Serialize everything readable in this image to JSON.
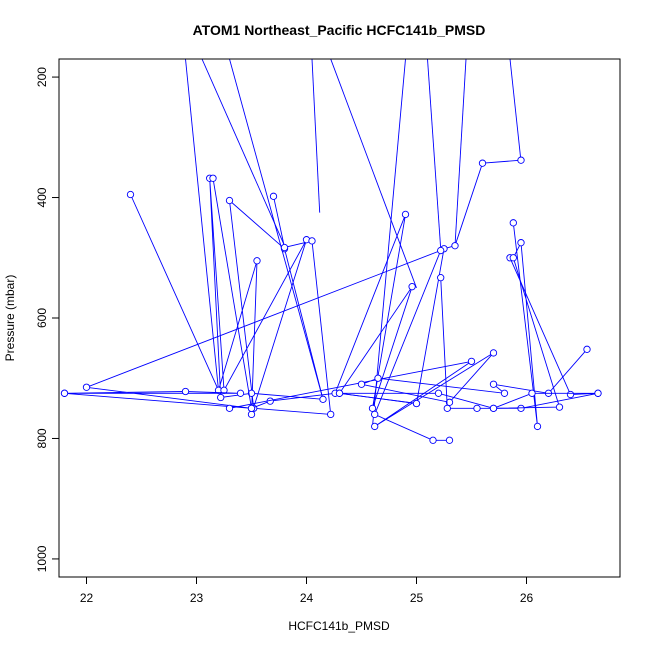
{
  "chart_data": {
    "type": "line",
    "title": "ATOM1 Northeast_Pacific HCFC141b_PMSD",
    "xlabel": "HCFC141b_PMSD",
    "ylabel": "Pressure (mbar)",
    "xlim": [
      21.75,
      26.85
    ],
    "ylim": [
      1030,
      170
    ],
    "y_reversed": true,
    "xticks": [
      22,
      23,
      24,
      25,
      26
    ],
    "yticks": [
      200,
      400,
      600,
      800,
      1000
    ],
    "grid": false,
    "legend": "none",
    "series_color": "#0000ff",
    "segments": [
      {
        "start": [
          22.9,
          170
        ],
        "end": [
          23.2,
          720
        ]
      },
      {
        "start": [
          23.05,
          170
        ],
        "end": [
          23.8,
          480
        ]
      },
      {
        "start": [
          23.3,
          170
        ],
        "end": [
          24.15,
          735
        ]
      },
      {
        "start": [
          24.05,
          170
        ],
        "end": [
          24.12,
          425
        ]
      },
      {
        "start": [
          24.22,
          170
        ],
        "end": [
          25.0,
          550
        ]
      },
      {
        "start": [
          25.1,
          170
        ],
        "end": [
          25.22,
          485
        ]
      },
      {
        "start": [
          25.45,
          170
        ],
        "end": [
          25.35,
          480
        ]
      },
      {
        "start": [
          25.85,
          170
        ],
        "end": [
          25.95,
          340
        ]
      },
      {
        "start": [
          24.9,
          170
        ],
        "end": [
          24.6,
          780
        ]
      }
    ],
    "series": [
      {
        "x": [
          22.4,
          23.2,
          23.55,
          23.5,
          24.0,
          23.25,
          23.12,
          23.22,
          23.5,
          24.15,
          23.8,
          23.3,
          23.52,
          24.22,
          24.05,
          23.8,
          23.7
        ],
        "y": [
          395,
          720,
          505,
          760,
          470,
          720,
          368,
          732,
          725,
          735,
          485,
          405,
          750,
          760,
          472,
          483,
          398
        ]
      },
      {
        "x": [
          23.15,
          23.5,
          23.67,
          24.26,
          24.9,
          24.6,
          24.96,
          24.3,
          25.0,
          25.25,
          25.35,
          25.6,
          25.95
        ],
        "y": [
          368,
          750,
          738,
          725,
          428,
          750,
          548,
          725,
          742,
          485,
          480,
          343,
          338
        ]
      },
      {
        "x": [
          21.8,
          23.4,
          22.9,
          21.8,
          23.5,
          22.0,
          25.22,
          24.62,
          25.15,
          25.3
        ],
        "y": [
          725,
          725,
          722,
          725,
          750,
          715,
          488,
          760,
          803,
          803
        ]
      },
      {
        "x": [
          23.3,
          25.5,
          24.62,
          25.7,
          25.3,
          24.5,
          24.65,
          25.8,
          25.7,
          26.2,
          26.55
        ],
        "y": [
          750,
          672,
          780,
          658,
          740,
          710,
          700,
          725,
          710,
          725,
          652
        ]
      },
      {
        "x": [
          25.22,
          25.28,
          25.55,
          25.95,
          26.65,
          26.4,
          25.85
        ],
        "y": [
          533,
          750,
          750,
          750,
          725,
          727,
          500
        ]
      },
      {
        "x": [
          25.88,
          26.1,
          25.95,
          25.88,
          26.3,
          25.7,
          25.2,
          24.3,
          25.0
        ],
        "y": [
          442,
          780,
          475,
          500,
          748,
          750,
          725,
          725,
          742
        ]
      },
      {
        "x": [
          26.65,
          26.05,
          25.7
        ],
        "y": [
          725,
          725,
          750
        ]
      }
    ]
  }
}
